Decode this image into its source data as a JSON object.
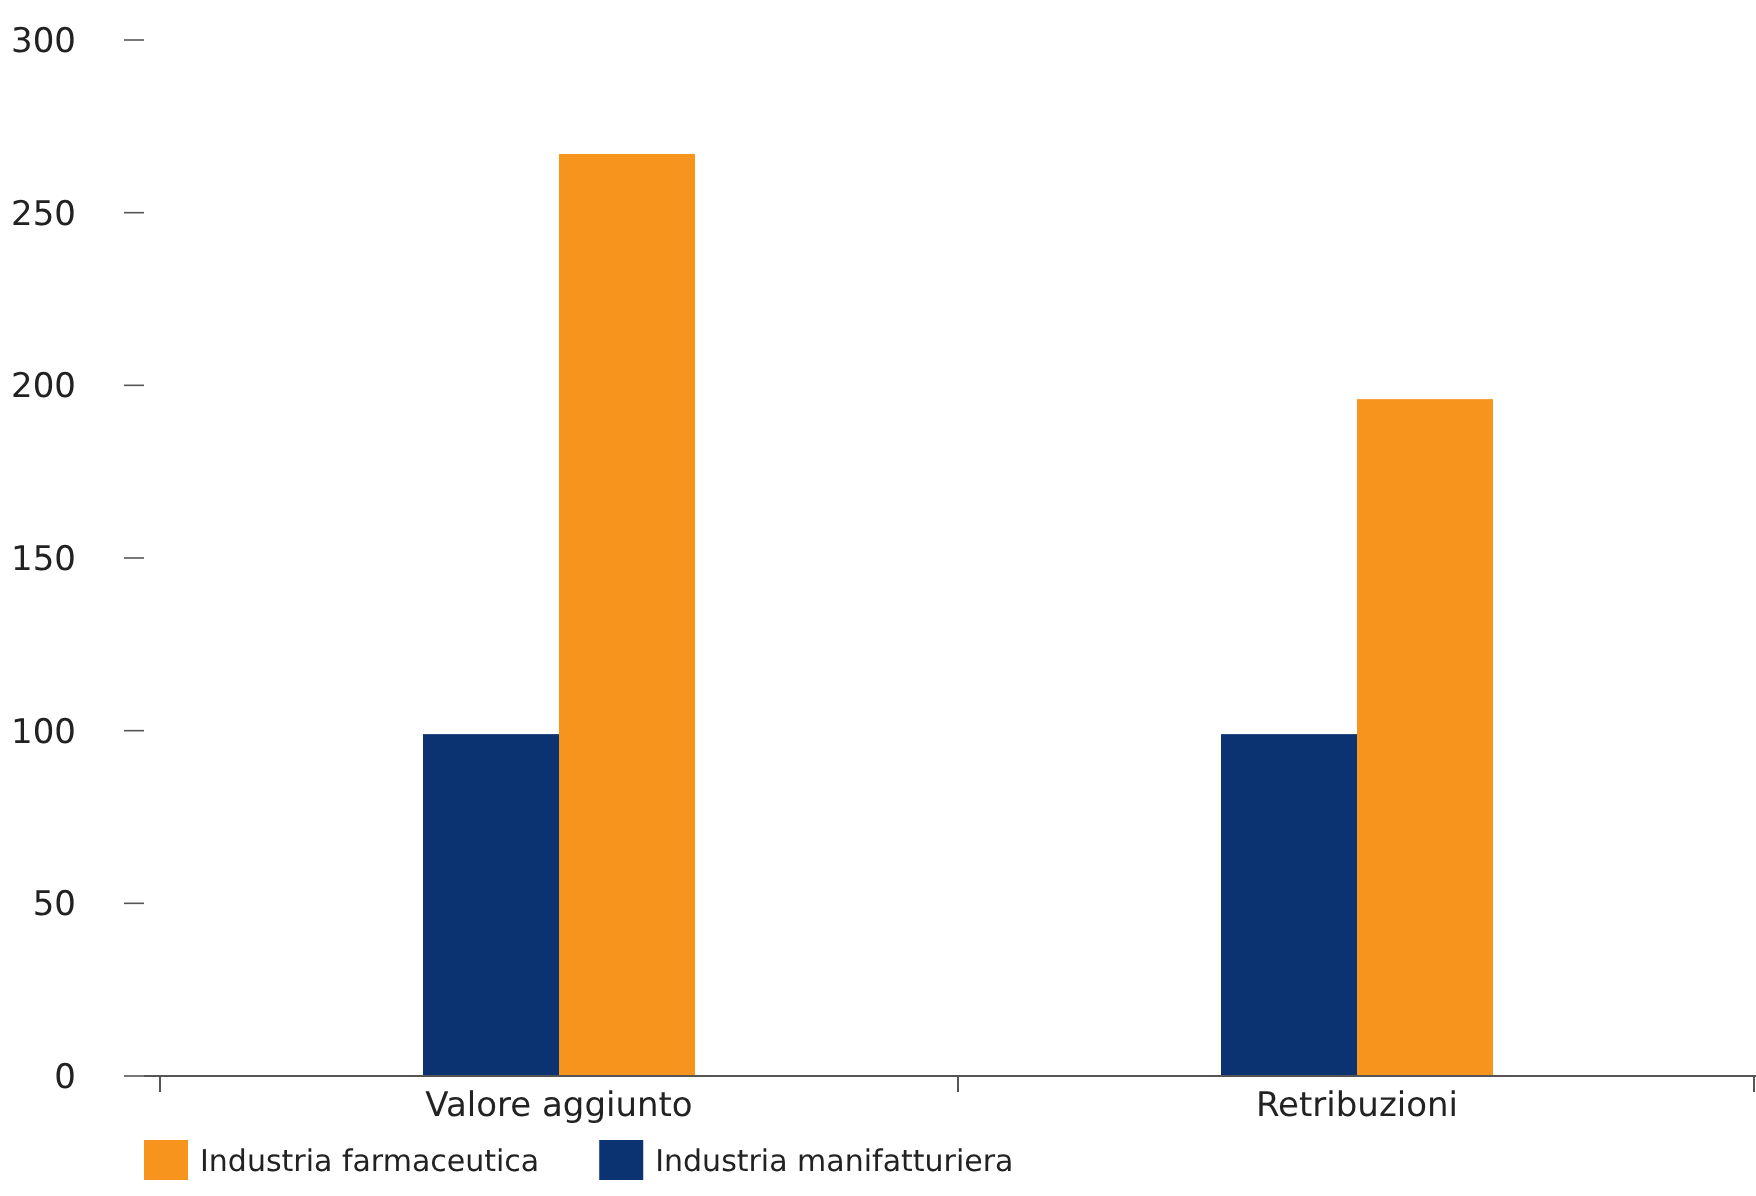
{
  "chart_data": {
    "type": "bar",
    "categories": [
      "Valore aggiunto",
      "Retribuzioni"
    ],
    "series": [
      {
        "name": "Industria manifatturiera",
        "color": "#0b3372",
        "values": [
          99,
          99
        ]
      },
      {
        "name": "Industria farmaceutica",
        "color": "#f7941d",
        "values": [
          267,
          196
        ]
      }
    ],
    "ylim": [
      0,
      300
    ],
    "yticks": [
      0,
      50,
      100,
      150,
      200,
      250,
      300
    ],
    "grid": false,
    "legend": "bottom"
  }
}
